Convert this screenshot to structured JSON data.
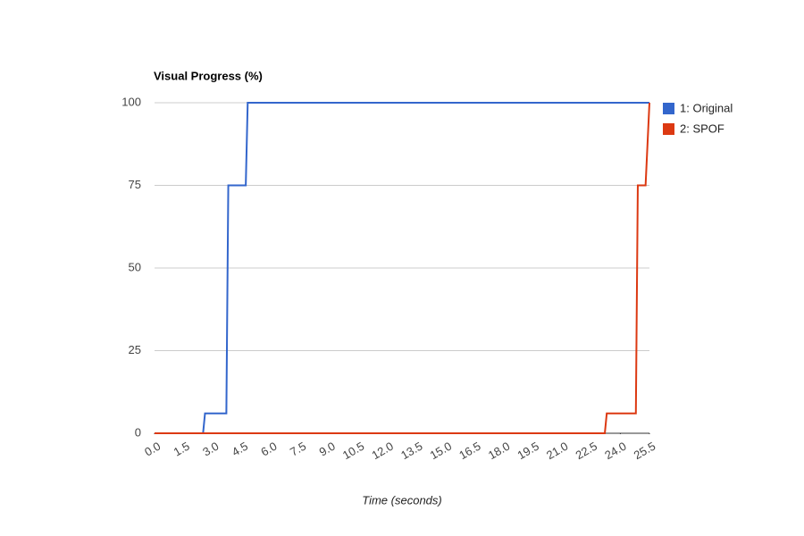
{
  "chart_data": {
    "type": "line",
    "title": "Visual Progress (%)",
    "x_label": "Time (seconds)",
    "series": [
      {
        "name": "1: Original",
        "color": "#3366cc",
        "x": [
          0,
          2.5,
          2.6,
          3.7,
          3.8,
          4.7,
          4.8,
          25.5
        ],
        "values": [
          0,
          0,
          6,
          6,
          75,
          75,
          100,
          100
        ]
      },
      {
        "name": "2: SPOF",
        "color": "#dc3912",
        "x": [
          0,
          23.2,
          23.3,
          24.8,
          24.9,
          25.3,
          25.5
        ],
        "values": [
          0,
          0,
          6,
          6,
          75,
          75,
          100
        ]
      }
    ],
    "xlim": [
      0,
      25.5
    ],
    "xticks": [
      {
        "value": 0,
        "label": "0.0"
      },
      1.5,
      {
        "value": 3,
        "label": "3.0"
      },
      4.5,
      {
        "value": 6,
        "label": "6.0"
      },
      7.5,
      {
        "value": 9,
        "label": "9.0"
      },
      10.5,
      {
        "value": 12,
        "label": "12.0"
      },
      13.5,
      {
        "value": 15,
        "label": "15.0"
      },
      16.5,
      {
        "value": 18,
        "label": "18.0"
      },
      19.5,
      {
        "value": 21,
        "label": "21.0"
      },
      22.5,
      {
        "value": 24,
        "label": "24.0"
      },
      25.5
    ],
    "ylim": [
      0,
      100
    ],
    "yticks": [
      0,
      25,
      50,
      75,
      100
    ],
    "grid": true,
    "legend": "right"
  }
}
